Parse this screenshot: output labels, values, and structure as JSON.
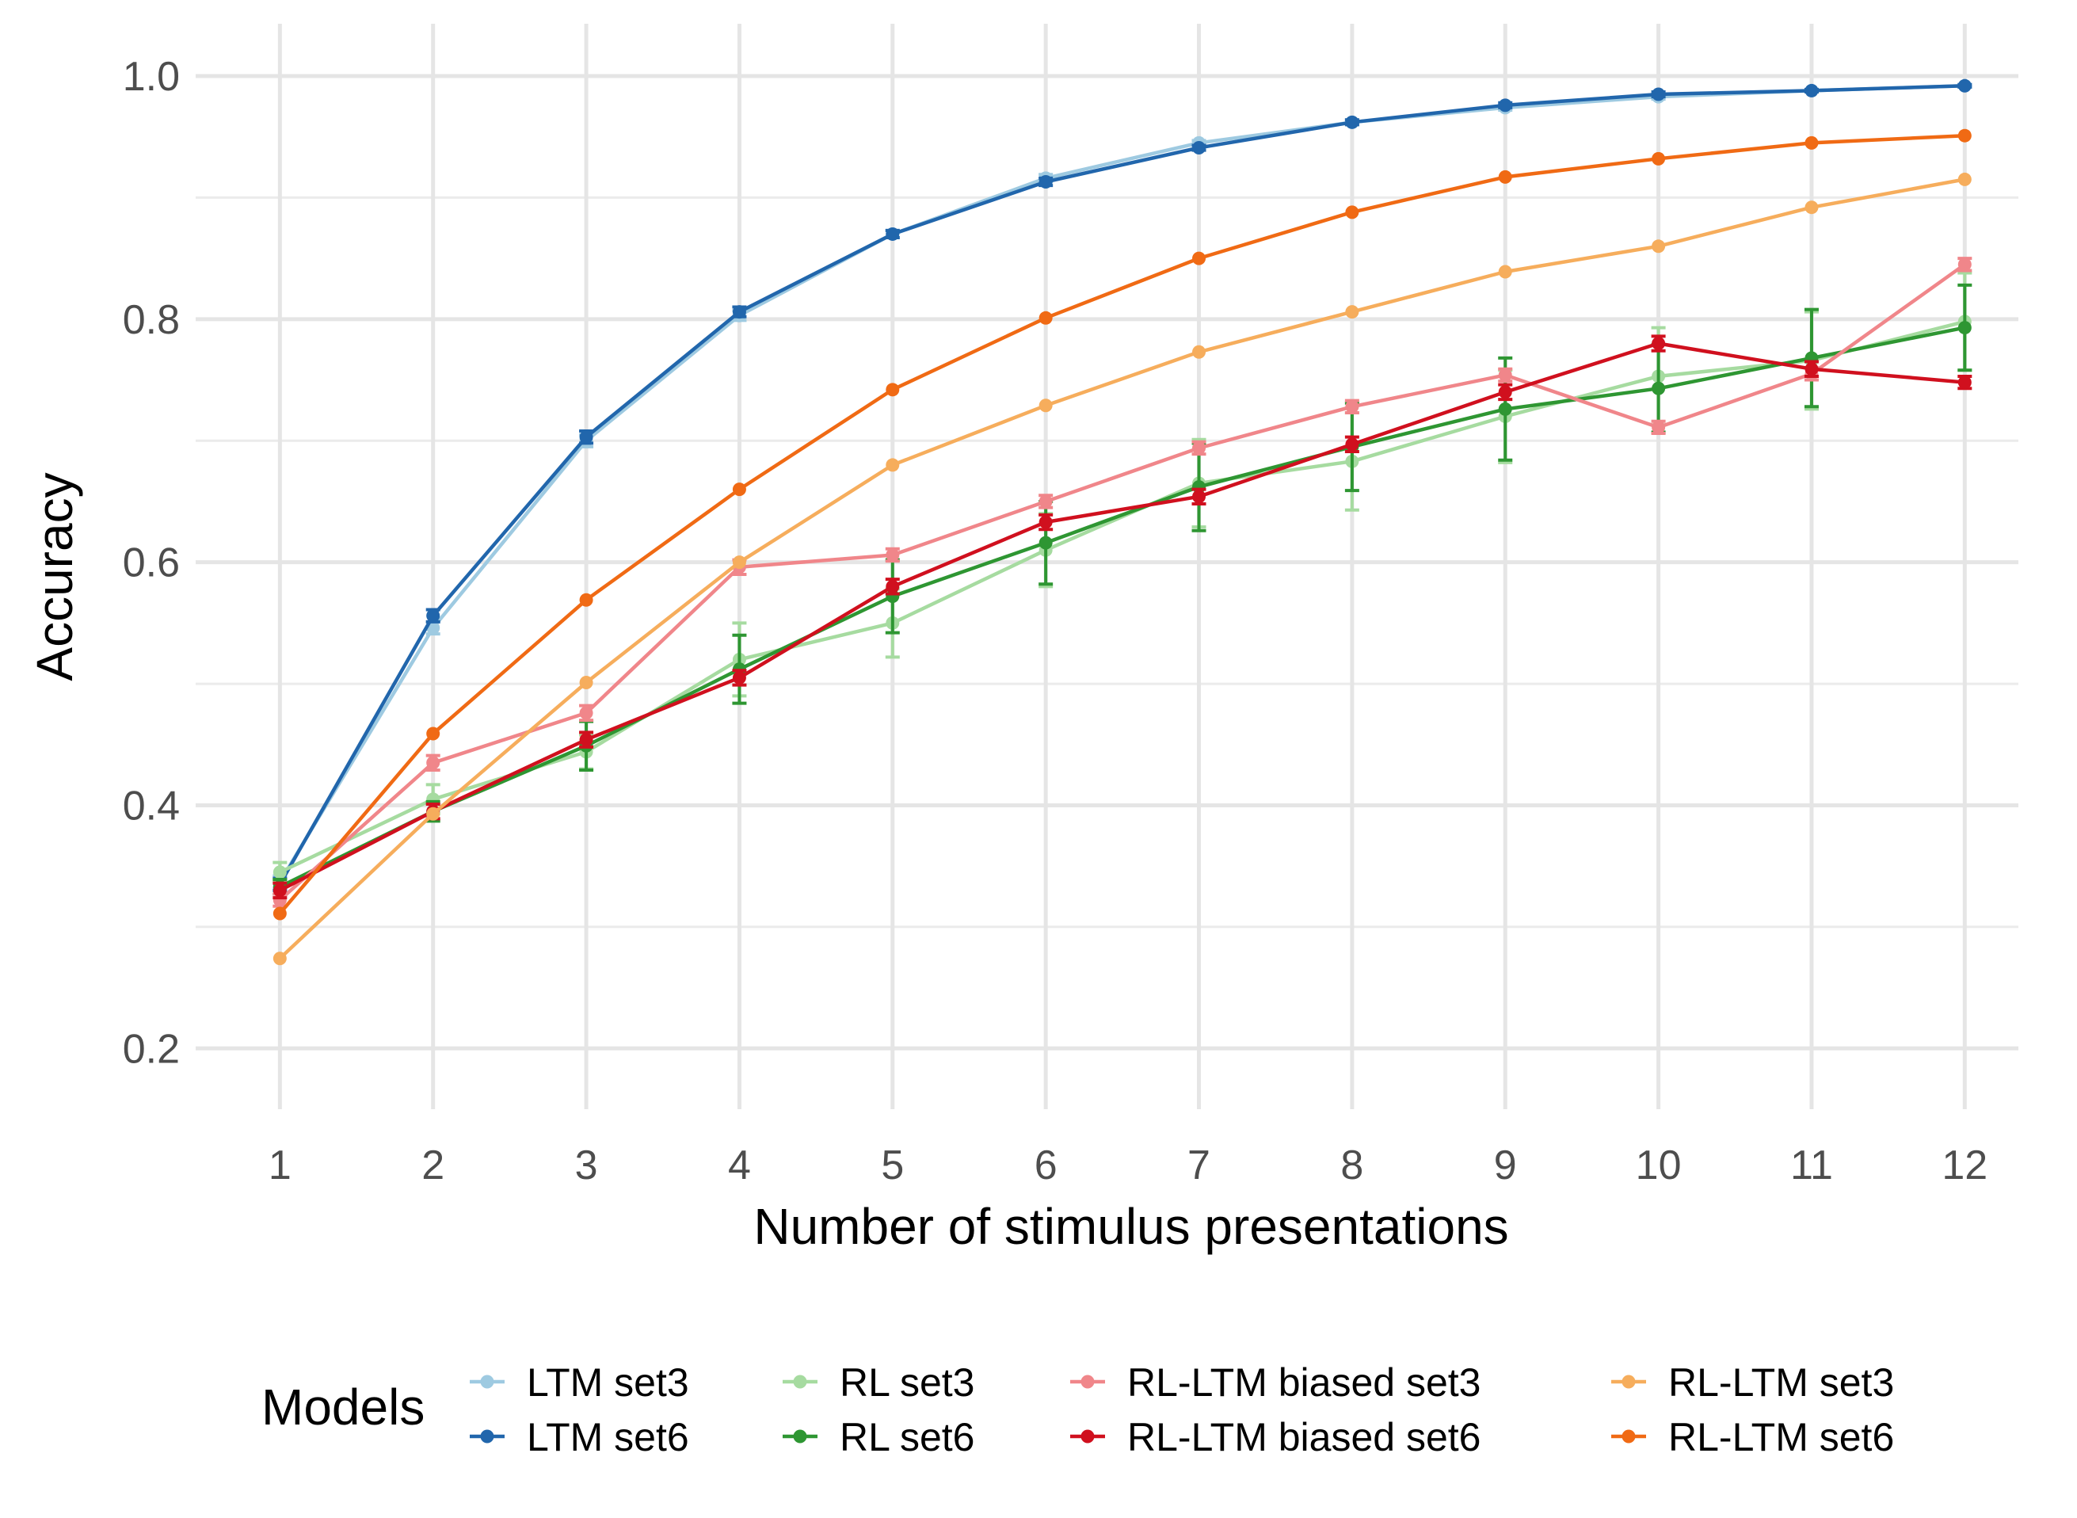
{
  "chart_data": {
    "type": "line",
    "xlabel": "Number of stimulus presentations",
    "ylabel": "Accuracy",
    "x": [
      1,
      2,
      3,
      4,
      5,
      6,
      7,
      8,
      9,
      10,
      11,
      12
    ],
    "xlim": [
      0.45,
      12.35
    ],
    "ylim": [
      0.15,
      1.03
    ],
    "yticks": [
      0.2,
      0.4,
      0.6,
      0.8,
      1.0
    ],
    "ytick_labels": [
      "0.2",
      "0.4",
      "0.6",
      "0.8",
      "1.0"
    ],
    "xtick_labels": [
      "1",
      "2",
      "3",
      "4",
      "5",
      "6",
      "7",
      "8",
      "9",
      "10",
      "11",
      "12"
    ],
    "grid": true,
    "legend": {
      "title": "Models",
      "position": "bottom"
    },
    "series": [
      {
        "name": "LTM set3",
        "color": "#9ecae1",
        "values": [
          0.337,
          0.546,
          0.7,
          0.803,
          0.87,
          0.916,
          0.945,
          0.962,
          0.974,
          0.983,
          0.988,
          0.992
        ],
        "errors": [
          0.005,
          0.005,
          0.005,
          0.004,
          0.003,
          0.003,
          0.002,
          0.002,
          0.002,
          0.002,
          0.001,
          0.001
        ]
      },
      {
        "name": "LTM set6",
        "color": "#2166ac",
        "values": [
          0.335,
          0.556,
          0.703,
          0.806,
          0.87,
          0.913,
          0.941,
          0.962,
          0.976,
          0.985,
          0.988,
          0.992
        ],
        "errors": [
          0.005,
          0.005,
          0.005,
          0.004,
          0.003,
          0.003,
          0.002,
          0.002,
          0.002,
          0.002,
          0.001,
          0.001
        ]
      },
      {
        "name": "RL set3",
        "color": "#a6dba0",
        "values": [
          0.345,
          0.405,
          0.444,
          0.52,
          0.55,
          0.61,
          0.665,
          0.683,
          0.72,
          0.753,
          0.766,
          0.798
        ],
        "errors": [
          0.008,
          0.012,
          0.014,
          0.03,
          0.028,
          0.03,
          0.036,
          0.04,
          0.038,
          0.04,
          0.04,
          0.04
        ]
      },
      {
        "name": "RL set6",
        "color": "#2e9632",
        "values": [
          0.333,
          0.395,
          0.449,
          0.512,
          0.572,
          0.616,
          0.662,
          0.695,
          0.726,
          0.743,
          0.768,
          0.793
        ],
        "errors": [
          0.006,
          0.008,
          0.02,
          0.028,
          0.03,
          0.034,
          0.036,
          0.036,
          0.042,
          0.036,
          0.04,
          0.035
        ]
      },
      {
        "name": "RL-LTM biased set3",
        "color": "#f0868a",
        "values": [
          0.322,
          0.435,
          0.476,
          0.596,
          0.606,
          0.65,
          0.694,
          0.728,
          0.754,
          0.711,
          0.755,
          0.845
        ],
        "errors": [
          0.005,
          0.006,
          0.006,
          0.006,
          0.005,
          0.005,
          0.005,
          0.005,
          0.005,
          0.005,
          0.005,
          0.005
        ]
      },
      {
        "name": "RL-LTM biased set6",
        "color": "#d0101e",
        "values": [
          0.33,
          0.395,
          0.454,
          0.505,
          0.58,
          0.633,
          0.654,
          0.697,
          0.74,
          0.78,
          0.759,
          0.748
        ],
        "errors": [
          0.006,
          0.006,
          0.006,
          0.006,
          0.006,
          0.006,
          0.006,
          0.006,
          0.006,
          0.006,
          0.006,
          0.005
        ]
      },
      {
        "name": "RL-LTM set3",
        "color": "#f6ad5c",
        "values": [
          0.274,
          0.393,
          0.501,
          0.6,
          0.68,
          0.729,
          0.773,
          0.806,
          0.839,
          0.86,
          0.892,
          0.915
        ],
        "errors": []
      },
      {
        "name": "RL-LTM set6",
        "color": "#f06a14",
        "values": [
          0.311,
          0.459,
          0.569,
          0.66,
          0.742,
          0.801,
          0.85,
          0.888,
          0.917,
          0.932,
          0.945,
          0.951
        ],
        "errors": []
      }
    ]
  }
}
